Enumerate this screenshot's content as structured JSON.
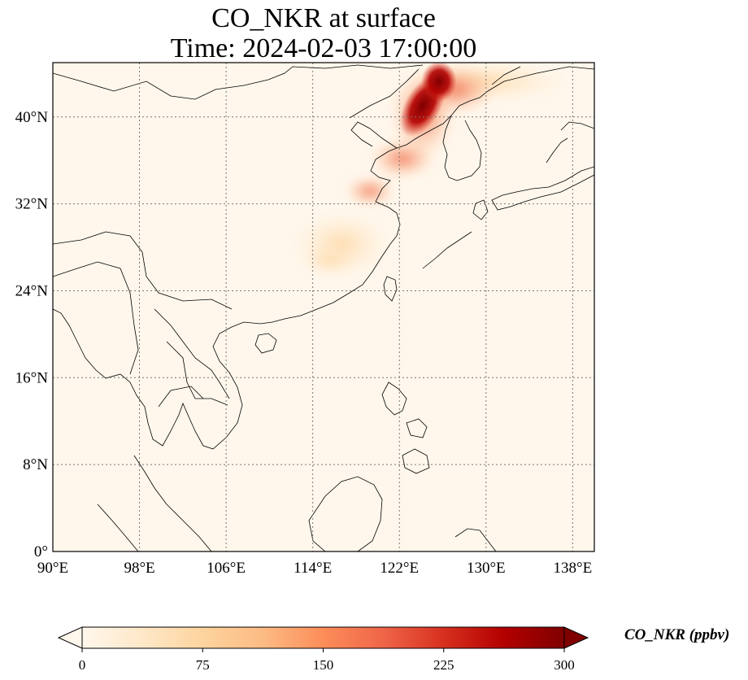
{
  "title": {
    "line1": "CO_NKR at surface",
    "line2": "Time: 2024-02-03 17:00:00"
  },
  "map": {
    "variable": "CO_NKR",
    "lon_range": [
      90,
      140
    ],
    "lat_range": [
      0,
      45
    ],
    "lon_ticks": [
      "90°E",
      "98°E",
      "106°E",
      "114°E",
      "122°E",
      "130°E",
      "138°E"
    ],
    "lon_values": [
      90,
      98,
      106,
      114,
      122,
      130,
      138
    ],
    "lat_ticks": [
      "0°",
      "8°N",
      "16°N",
      "24°N",
      "32°N",
      "40°N"
    ],
    "lat_values": [
      0,
      8,
      16,
      24,
      32,
      40
    ],
    "gridlines": "dotted",
    "colormap": "OrRd"
  },
  "colorbar": {
    "label": "CO_NKR (ppbv)",
    "ticks": [
      "0",
      "75",
      "150",
      "225",
      "300"
    ],
    "range": [
      0,
      300
    ],
    "colors": [
      "#fff7ec",
      "#fee8c8",
      "#fdd49e",
      "#fdbb84",
      "#fc8d59",
      "#ef6548",
      "#d7301f",
      "#b30000",
      "#7f0000"
    ]
  }
}
